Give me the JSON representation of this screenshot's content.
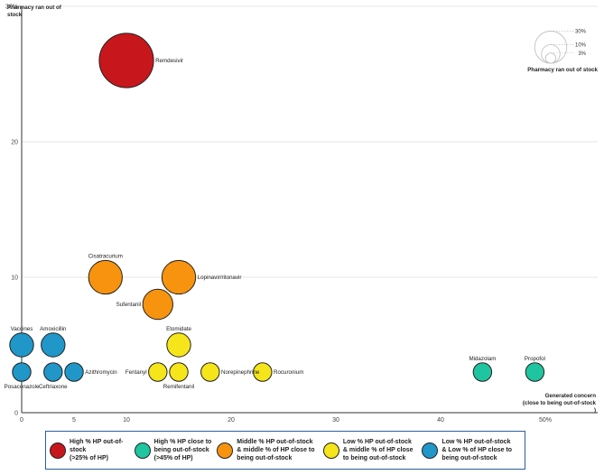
{
  "chart_data": {
    "type": "scatter",
    "subtype": "bubble",
    "title": "",
    "ylabel": "Pharmacy ran out of stock",
    "xlabel": "Generated concern (close to being out-of-stock)",
    "x_unit": "%",
    "y_unit": "%",
    "xlim": [
      -1,
      55
    ],
    "ylim": [
      0,
      30
    ],
    "x_ticks": [
      0,
      10,
      20,
      30,
      40,
      50
    ],
    "x_tick_labels": [
      "0",
      "5",
      "10",
      "20",
      "30",
      "40",
      "50%"
    ],
    "x_tick_values": [
      0,
      5,
      10,
      20,
      30,
      40,
      50
    ],
    "y_ticks": [
      0,
      10,
      20,
      30
    ],
    "y_tick_labels": [
      "0",
      "10",
      "20",
      "30%"
    ],
    "grid": "horizontal",
    "size_legend": {
      "title": "Pharmacy ran out of stock",
      "labels": [
        "30%",
        "10%",
        "3%"
      ],
      "values": [
        30,
        10,
        3
      ]
    },
    "categories": [
      {
        "key": "high",
        "color": "#c8171c",
        "label": "High % HP out-of-stock\n(>25% of HP)"
      },
      {
        "key": "close",
        "color": "#1fc4a0",
        "label": "High % HP close to\nbeing out-of-stock\n(>45% of HP)"
      },
      {
        "key": "middle",
        "color": "#f7930e",
        "label": "Middle % HP out-of-stock\n& middle % of HP close to\nbeing out-of-stock"
      },
      {
        "key": "low_mid",
        "color": "#f6e51a",
        "label": "Low % HP out-of-stock\n& middle % of HP close\nto being out-of-stock"
      },
      {
        "key": "low",
        "color": "#2196c8",
        "label": "Low % HP out-of-stock\n& Low % of HP close to\nbeing out-of-stock"
      }
    ],
    "points": [
      {
        "name": "Remdesivir",
        "x": 10,
        "y": 26,
        "category": "high",
        "label_pos": "right"
      },
      {
        "name": "Cisatracurium",
        "x": 8,
        "y": 10,
        "category": "middle",
        "label_pos": "top"
      },
      {
        "name": "Lopinavir/ritonavir",
        "x": 15,
        "y": 10,
        "category": "middle",
        "label_pos": "right"
      },
      {
        "name": "Sufentanil",
        "x": 13,
        "y": 8,
        "category": "middle",
        "label_pos": "left"
      },
      {
        "name": "Etomidate",
        "x": 15,
        "y": 5,
        "category": "low_mid",
        "label_pos": "top"
      },
      {
        "name": "Fentanyl",
        "x": 13,
        "y": 3,
        "category": "low_mid",
        "label_pos": "left"
      },
      {
        "name": "Remifentanil",
        "x": 15,
        "y": 3,
        "category": "low_mid",
        "label_pos": "bottom"
      },
      {
        "name": "Norepinephrine",
        "x": 18,
        "y": 3,
        "category": "low_mid",
        "label_pos": "right"
      },
      {
        "name": "Rocuronium",
        "x": 23,
        "y": 3,
        "category": "low_mid",
        "label_pos": "right"
      },
      {
        "name": "Vaccines",
        "x": 0,
        "y": 5,
        "category": "low",
        "label_pos": "top"
      },
      {
        "name": "Amoxicillin",
        "x": 3,
        "y": 5,
        "category": "low",
        "label_pos": "top"
      },
      {
        "name": "Posaconazole",
        "x": 0,
        "y": 3,
        "category": "low",
        "label_pos": "bottom"
      },
      {
        "name": "Ceftriaxone",
        "x": 3,
        "y": 3,
        "category": "low",
        "label_pos": "bottom"
      },
      {
        "name": "Azithromycin",
        "x": 5,
        "y": 3,
        "category": "low",
        "label_pos": "right"
      },
      {
        "name": "Midazolam",
        "x": 44,
        "y": 3,
        "category": "close",
        "label_pos": "top"
      },
      {
        "name": "Propofol",
        "x": 49,
        "y": 3,
        "category": "close",
        "label_pos": "top"
      }
    ]
  }
}
